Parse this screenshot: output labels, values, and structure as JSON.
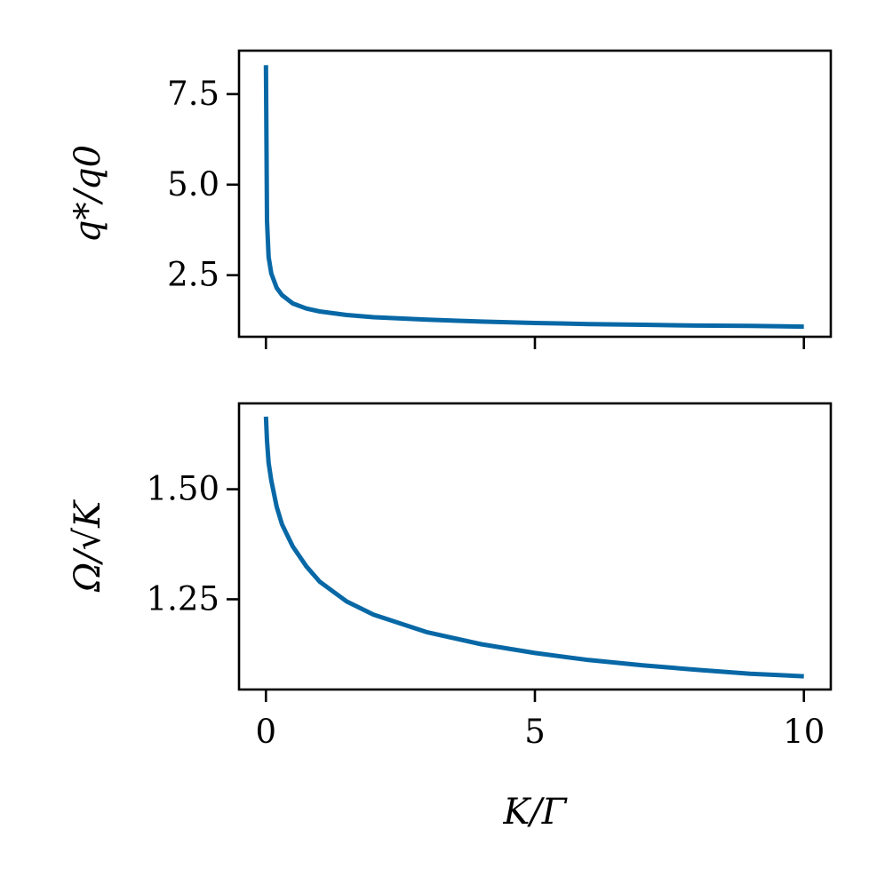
{
  "chart_data": [
    {
      "type": "line",
      "ylabel": "q*/q0",
      "xlabel": "",
      "xlim": [
        -0.5,
        10.5
      ],
      "ylim": [
        0.8,
        8.7
      ],
      "xticks": [
        0,
        5,
        10
      ],
      "xtick_labels": [
        "",
        "",
        ""
      ],
      "yticks": [
        2.5,
        5.0,
        7.5
      ],
      "ytick_labels": [
        "2.5",
        "5.0",
        "7.5"
      ],
      "grid": false,
      "line_color": "#0868a6",
      "series": [
        {
          "x": [
            0,
            0.02,
            0.05,
            0.1,
            0.2,
            0.3,
            0.5,
            0.75,
            1,
            1.5,
            2,
            3,
            4,
            5,
            6,
            7,
            8,
            9,
            10
          ],
          "y": [
            8.3,
            4.0,
            3.0,
            2.55,
            2.15,
            1.95,
            1.72,
            1.58,
            1.5,
            1.4,
            1.34,
            1.27,
            1.22,
            1.18,
            1.15,
            1.13,
            1.11,
            1.1,
            1.08
          ]
        }
      ]
    },
    {
      "type": "line",
      "ylabel": "Ω/√K",
      "xlabel": "K/Γ",
      "xlim": [
        -0.5,
        10.5
      ],
      "ylim": [
        1.045,
        1.695
      ],
      "xticks": [
        0,
        5,
        10
      ],
      "xtick_labels": [
        "0",
        "5",
        "10"
      ],
      "yticks": [
        1.25,
        1.5
      ],
      "ytick_labels": [
        "1.25",
        "1.50"
      ],
      "grid": false,
      "line_color": "#0868a6",
      "series": [
        {
          "x": [
            0,
            0.02,
            0.05,
            0.1,
            0.2,
            0.3,
            0.5,
            0.75,
            1,
            1.5,
            2,
            3,
            4,
            5,
            6,
            7,
            8,
            9,
            10
          ],
          "y": [
            1.665,
            1.61,
            1.56,
            1.52,
            1.46,
            1.42,
            1.37,
            1.325,
            1.29,
            1.245,
            1.215,
            1.175,
            1.148,
            1.128,
            1.112,
            1.1,
            1.09,
            1.081,
            1.075
          ]
        }
      ]
    }
  ]
}
